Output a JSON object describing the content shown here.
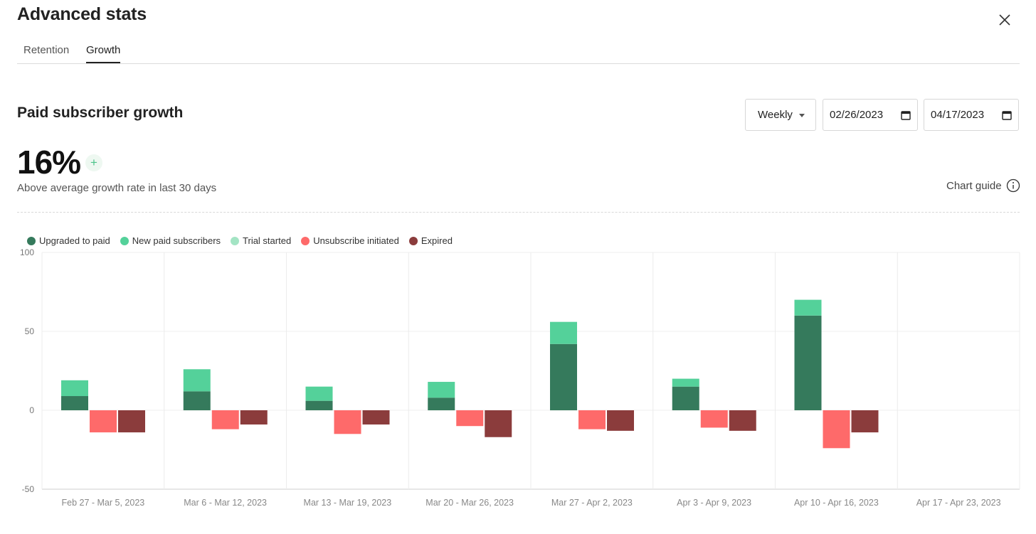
{
  "header": {
    "title": "Advanced stats"
  },
  "tabs": [
    {
      "label": "Retention",
      "active": false
    },
    {
      "label": "Growth",
      "active": true
    }
  ],
  "section": {
    "title": "Paid subscriber growth"
  },
  "controls": {
    "interval": "Weekly",
    "start_date": "02/26/2023",
    "end_date": "04/17/2023"
  },
  "summary": {
    "rate": "16%",
    "badge": "+",
    "description": "Above average growth rate in last 30 days"
  },
  "chart_guide": {
    "label": "Chart guide"
  },
  "chart_data": {
    "type": "bar",
    "stacked": true,
    "categories": [
      "Feb 27 - Mar 5, 2023",
      "Mar 6 - Mar 12, 2023",
      "Mar 13 - Mar 19, 2023",
      "Mar 20 - Mar 26, 2023",
      "Mar 27 - Apr 2, 2023",
      "Apr 3 - Apr 9, 2023",
      "Apr 10 - Apr 16, 2023",
      "Apr 17 - Apr 23, 2023"
    ],
    "series": [
      {
        "name": "Upgraded to paid",
        "color": "#357a5c",
        "stack": "positive",
        "values": [
          9,
          12,
          6,
          8,
          42,
          15,
          60,
          0
        ]
      },
      {
        "name": "New paid subscribers",
        "color": "#54d19a",
        "stack": "positive",
        "values": [
          10,
          14,
          9,
          10,
          14,
          5,
          10,
          0
        ]
      },
      {
        "name": "Trial started",
        "color": "#a3e4c4",
        "stack": "positive",
        "values": [
          0,
          0,
          0,
          0,
          0,
          0,
          0,
          0
        ]
      },
      {
        "name": "Unsubscribe initiated",
        "color": "#fe6a6a",
        "stack": "unsub",
        "values": [
          -14,
          -12,
          -15,
          -10,
          -12,
          -11,
          -24,
          0
        ]
      },
      {
        "name": "Expired",
        "color": "#8b3c3c",
        "stack": "expired",
        "values": [
          -14,
          -9,
          -9,
          -17,
          -13,
          -13,
          -14,
          0
        ]
      }
    ],
    "yticks": [
      100,
      50,
      0,
      -50
    ],
    "ylim": [
      -50,
      100
    ],
    "legend_position": "top-left",
    "grid": true
  }
}
